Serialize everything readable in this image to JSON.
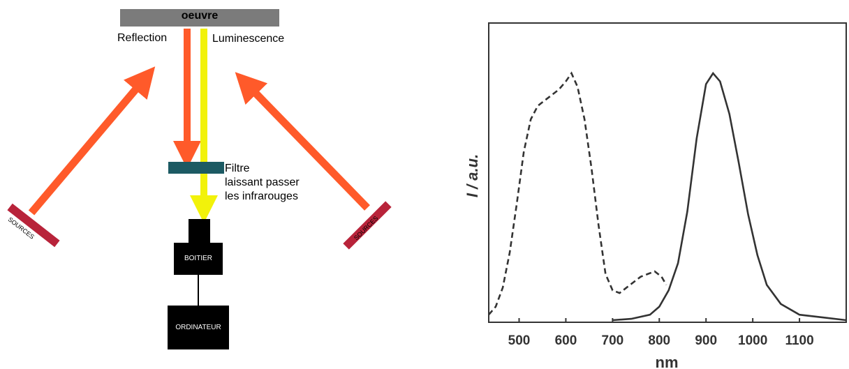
{
  "diagram": {
    "oeuvre": "oeuvre",
    "reflection": "Reflection",
    "luminescence": "Luminescence",
    "filtre": [
      "Filtre",
      "laissant passer",
      "les infrarouges"
    ],
    "boitier": "BOITIER",
    "ordinateur": "ORDINATEUR",
    "source_left": "SOURCES",
    "source_right": "SOURCES",
    "colors": {
      "beam_red": "#ff5a2a",
      "beam_yellow": "#f2f20a",
      "filter": "#1c5a63",
      "source": "#b8233a"
    }
  },
  "chart_data": {
    "type": "line",
    "title": "",
    "xlabel": "nm",
    "ylabel": "I / a.u.",
    "xlim": [
      435,
      1200
    ],
    "ylim": [
      0,
      1
    ],
    "x_ticks": [
      500,
      600,
      700,
      800,
      900,
      1000,
      1100
    ],
    "series": [
      {
        "style": "dashed",
        "x": [
          435,
          450,
          465,
          480,
          495,
          510,
          525,
          540,
          555,
          570,
          585,
          600,
          612,
          625,
          640,
          655,
          670,
          685,
          700,
          715,
          730,
          745,
          760,
          775,
          790,
          805,
          815
        ],
        "y": [
          0.02,
          0.05,
          0.12,
          0.25,
          0.43,
          0.62,
          0.74,
          0.79,
          0.81,
          0.83,
          0.85,
          0.88,
          0.91,
          0.86,
          0.74,
          0.56,
          0.35,
          0.17,
          0.11,
          0.1,
          0.12,
          0.14,
          0.16,
          0.17,
          0.18,
          0.16,
          0.13
        ]
      },
      {
        "style": "solid",
        "x": [
          700,
          740,
          780,
          800,
          820,
          840,
          860,
          880,
          900,
          915,
          930,
          950,
          970,
          990,
          1010,
          1030,
          1060,
          1100,
          1150,
          1200
        ],
        "y": [
          0.0,
          0.005,
          0.02,
          0.05,
          0.11,
          0.21,
          0.4,
          0.67,
          0.87,
          0.91,
          0.88,
          0.76,
          0.58,
          0.39,
          0.24,
          0.13,
          0.06,
          0.02,
          0.01,
          0.0
        ]
      }
    ]
  }
}
